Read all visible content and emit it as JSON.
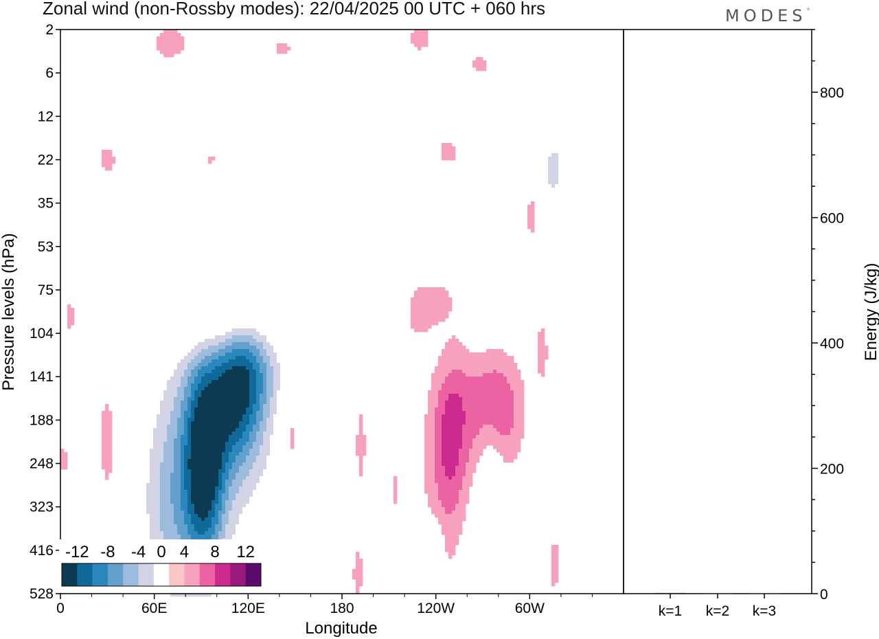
{
  "title": "Zonal wind (non-Rossby modes):  22/04/2025  00 UTC  + 060 hrs",
  "brand": "MODES",
  "brand_mark": "°",
  "chart_data": [
    {
      "type": "heatmap",
      "xlabel": "Longitude",
      "ylabel": "Pressure levels (hPa)",
      "x_ticks": [
        "0",
        "60E",
        "120E",
        "180",
        "120W",
        "60W"
      ],
      "y_ticks": [
        "2",
        "6",
        "12",
        "22",
        "35",
        "53",
        "75",
        "104",
        "141",
        "188",
        "248",
        "323",
        "416",
        "528"
      ],
      "colorbar": {
        "labels": [
          "-12",
          "-8",
          "-4",
          "0",
          "4",
          "8",
          "12"
        ],
        "levels": [
          -14,
          -12,
          -10,
          -8,
          -6,
          -4,
          -2,
          2,
          4,
          6,
          8,
          10,
          12,
          14
        ],
        "colors": [
          "#0b3a52",
          "#0f6a99",
          "#2b88bf",
          "#63a1cc",
          "#9dbbdc",
          "#d2d4e6",
          "#ffffff",
          "#f9c6c4",
          "#f7a1bc",
          "#ec63a4",
          "#cc2a8e",
          "#991a7c",
          "#5c0a6e"
        ]
      },
      "features": [
        {
          "lon": 92,
          "lev": 10.0,
          "sx": 9,
          "sy": 1.6,
          "val": -12
        },
        {
          "lon": 112,
          "lev": 8.6,
          "sx": 12,
          "sy": 1.1,
          "val": -9
        },
        {
          "lon": 100,
          "lev": 9.6,
          "sx": 30,
          "sy": 2.2,
          "val": -4.5
        },
        {
          "lon": 78,
          "lev": 10.8,
          "sx": 14,
          "sy": 2.6,
          "val": -3
        },
        {
          "lon": 65,
          "lev": 11.3,
          "sx": 12,
          "sy": 1.6,
          "val": -2.6
        },
        {
          "lon": 122,
          "lev": 7.7,
          "sx": 14,
          "sy": 0.9,
          "val": -6
        },
        {
          "lon": 96,
          "lev": 6.9,
          "sx": 40,
          "sy": 0.5,
          "val": 3.4
        },
        {
          "lon": 112,
          "lev": 6.3,
          "sx": 14,
          "sy": 0.4,
          "val": 3
        },
        {
          "lon": 40,
          "lev": 5.5,
          "sx": 9,
          "sy": 0.3,
          "val": -2.4
        },
        {
          "lon": 4,
          "lev": 4.6,
          "sx": 5,
          "sy": 0.35,
          "val": -2.6
        },
        {
          "lon": 135,
          "lev": 12.3,
          "sx": 4,
          "sy": 1.2,
          "val": -2.4
        },
        {
          "lon": 238,
          "lev": 6.6,
          "sx": 17,
          "sy": 0.9,
          "val": 3.2
        },
        {
          "lon": 248,
          "lev": 7.2,
          "sx": 12,
          "sy": 0.8,
          "val": -3.5
        },
        {
          "lon": 268,
          "lev": 6.4,
          "sx": 6,
          "sy": 0.7,
          "val": -3
        },
        {
          "lon": 284,
          "lev": 6.3,
          "sx": 8,
          "sy": 0.6,
          "val": -2.8
        },
        {
          "lon": 260,
          "lev": 8.4,
          "sx": 15,
          "sy": 1.4,
          "val": 3.6
        },
        {
          "lon": 282,
          "lev": 8.8,
          "sx": 12,
          "sy": 1.0,
          "val": 4.5
        },
        {
          "lon": 250,
          "lev": 9.4,
          "sx": 7,
          "sy": 1.5,
          "val": 3.5
        },
        {
          "lon": 243,
          "lev": 10.5,
          "sx": 10,
          "sy": 1.8,
          "val": 2.6
        },
        {
          "lon": 275,
          "lev": 10.6,
          "sx": 6,
          "sy": 1.2,
          "val": -3.2
        },
        {
          "lon": 192,
          "lev": 9.6,
          "sx": 6,
          "sy": 1.8,
          "val": 2.2
        },
        {
          "lon": 315,
          "lev": 3.2,
          "sx": 9,
          "sy": 0.9,
          "val": -4.5
        },
        {
          "lon": 318,
          "lev": 0.6,
          "sx": 4,
          "sy": 0.6,
          "val": -3
        },
        {
          "lon": 302,
          "lev": 4.2,
          "sx": 4,
          "sy": 0.6,
          "val": 3.4
        },
        {
          "lon": 308,
          "lev": 7.5,
          "sx": 3,
          "sy": 0.6,
          "val": 3.4
        },
        {
          "lon": 312,
          "lev": 9.4,
          "sx": 7,
          "sy": 1.0,
          "val": -2.4
        },
        {
          "lon": 316,
          "lev": 12.3,
          "sx": 4,
          "sy": 0.9,
          "val": 2.4
        },
        {
          "lon": 268,
          "lev": 0.8,
          "sx": 10,
          "sy": 0.4,
          "val": 2.2
        },
        {
          "lon": 230,
          "lev": 0.2,
          "sx": 9,
          "sy": 0.4,
          "val": 2.4
        },
        {
          "lon": 138,
          "lev": 0.4,
          "sx": 12,
          "sy": 0.35,
          "val": 3
        },
        {
          "lon": 70,
          "lev": 0.3,
          "sx": 10,
          "sy": 0.35,
          "val": 3
        },
        {
          "lon": 124,
          "lev": 0.3,
          "sx": 12,
          "sy": 0.3,
          "val": -2.2
        },
        {
          "lon": 260,
          "lev": 1.9,
          "sx": 9,
          "sy": 0.3,
          "val": -2.2
        },
        {
          "lon": 312,
          "lev": 2.2,
          "sx": 5,
          "sy": 0.3,
          "val": 2.2
        },
        {
          "lon": 30,
          "lev": 3.0,
          "sx": 6,
          "sy": 0.35,
          "val": 2.6
        },
        {
          "lon": 96,
          "lev": 3.0,
          "sx": 5,
          "sy": 0.3,
          "val": 2.2
        },
        {
          "lon": 210,
          "lev": 2.4,
          "sx": 6,
          "sy": 0.3,
          "val": -2.2
        },
        {
          "lon": 248,
          "lev": 2.8,
          "sx": 8,
          "sy": 0.4,
          "val": 2.4
        },
        {
          "lon": 214,
          "lev": 10.6,
          "sx": 4,
          "sy": 0.6,
          "val": 2.2
        },
        {
          "lon": 168,
          "lev": 10.0,
          "sx": 4,
          "sy": 0.8,
          "val": 2.2
        },
        {
          "lon": 190,
          "lev": 12.6,
          "sx": 3,
          "sy": 0.5,
          "val": 2.2
        },
        {
          "lon": 240,
          "lev": 11.8,
          "sx": 4,
          "sy": 0.5,
          "val": -2.2
        },
        {
          "lon": 30,
          "lev": 9.5,
          "sx": 5,
          "sy": 1.2,
          "val": 3
        },
        {
          "lon": 2,
          "lev": 9.9,
          "sx": 3,
          "sy": 0.5,
          "val": 2.4
        },
        {
          "lon": 6,
          "lev": 6.6,
          "sx": 3,
          "sy": 0.4,
          "val": 2.4
        },
        {
          "lon": 147,
          "lev": 9.4,
          "sx": 5,
          "sy": 0.7,
          "val": 3.8
        },
        {
          "lon": 240,
          "lev": 5.2,
          "sx": 6,
          "sy": 0.3,
          "val": -2.2
        }
      ],
      "energy_ylabel": "Energy (J/kg)",
      "energy_ticks": [
        0,
        200,
        400,
        600,
        800
      ],
      "energy_ylim": [
        0,
        900
      ],
      "energy_categories": [
        "k=1",
        "k=2",
        "k=3"
      ],
      "energy_values": [
        1.2,
        0.8,
        0.5
      ]
    }
  ]
}
